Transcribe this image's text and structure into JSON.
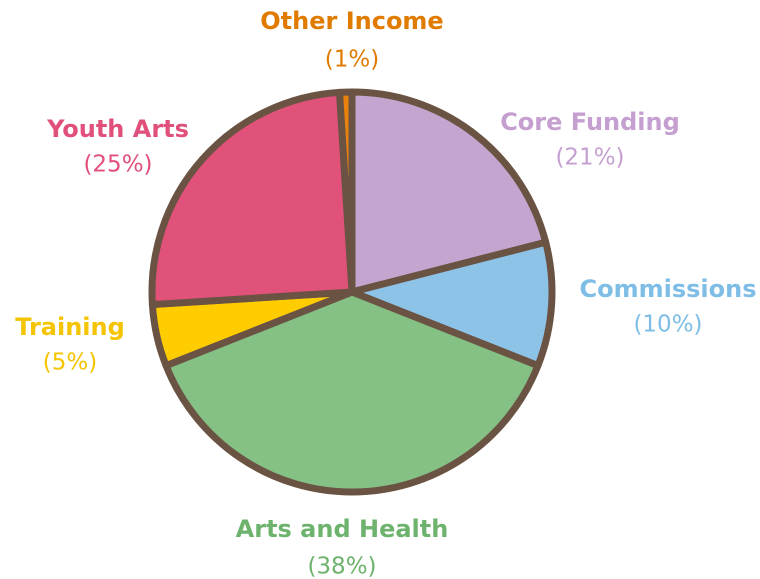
{
  "chart_data": {
    "type": "pie",
    "categories": [
      "Other Income",
      "Core Funding",
      "Commissions",
      "Arts and Health",
      "Training",
      "Youth Arts"
    ],
    "values": [
      1,
      21,
      10,
      38,
      5,
      25
    ],
    "value_labels": [
      "(1%)",
      "(21%)",
      "(10%)",
      "(38%)",
      "(5%)",
      "(25%)"
    ],
    "colors": [
      "#e8820c",
      "#c4a5cf",
      "#8ec3e8",
      "#85c185",
      "#ffcc00",
      "#e05279"
    ]
  }
}
